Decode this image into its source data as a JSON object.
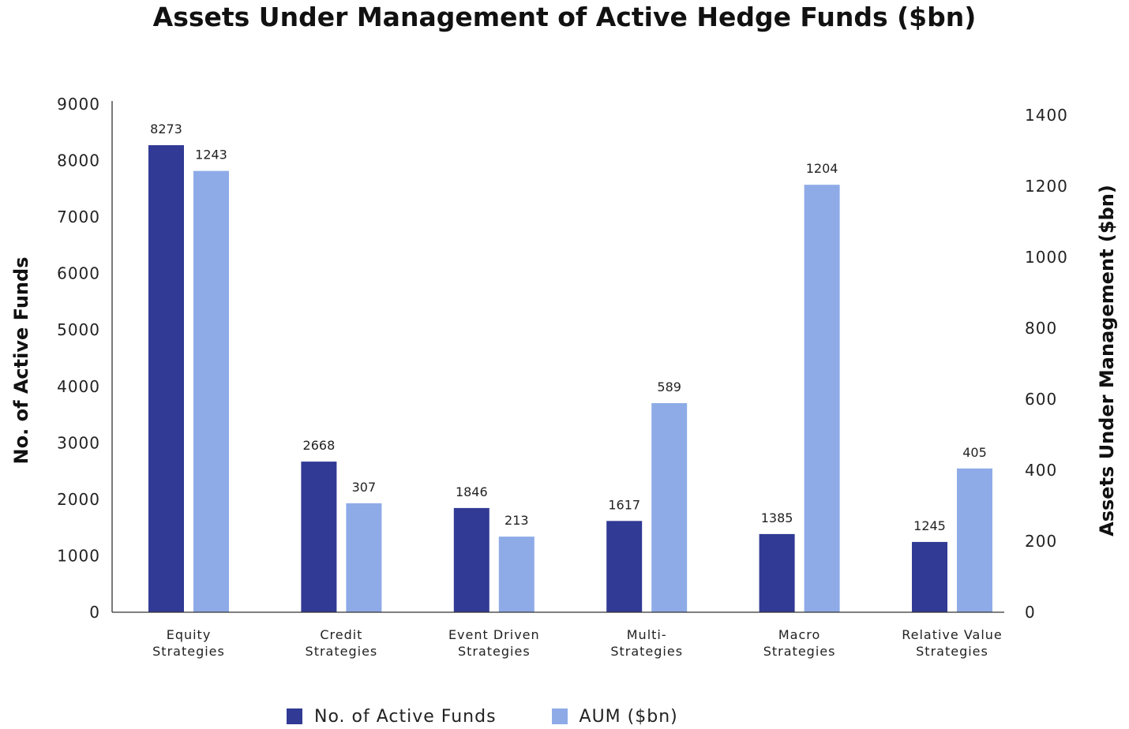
{
  "chart_data": {
    "type": "bar",
    "title": "Assets Under Management of Active Hedge Funds ($bn)",
    "categories": [
      [
        "Equity",
        "Strategies"
      ],
      [
        "Credit",
        "Strategies"
      ],
      [
        "Event Driven",
        "Strategies"
      ],
      [
        "Multi-",
        "Strategies"
      ],
      [
        "Macro",
        "Strategies"
      ],
      [
        "Relative Value",
        "Strategies"
      ]
    ],
    "series": [
      {
        "name": "No. of Active Funds",
        "axis": "left",
        "color": "#313a94",
        "values": [
          8273,
          2668,
          1846,
          1617,
          1385,
          1245
        ]
      },
      {
        "name": "AUM ($bn)",
        "axis": "right",
        "color": "#8eabe8",
        "values": [
          1243,
          307,
          213,
          589,
          1204,
          405
        ]
      }
    ],
    "ylabel": "No. of Active Funds",
    "ylim": [
      0,
      9000
    ],
    "yticks": [
      0,
      1000,
      2000,
      3000,
      4000,
      5000,
      6000,
      7000,
      8000,
      9000
    ],
    "y2label": "Assets Under Management ($bn)",
    "y2lim": [
      0,
      1400
    ],
    "y2ticks": [
      0,
      200,
      400,
      600,
      800,
      1000,
      1200,
      1400
    ],
    "grid": false,
    "legend": "bottom"
  }
}
